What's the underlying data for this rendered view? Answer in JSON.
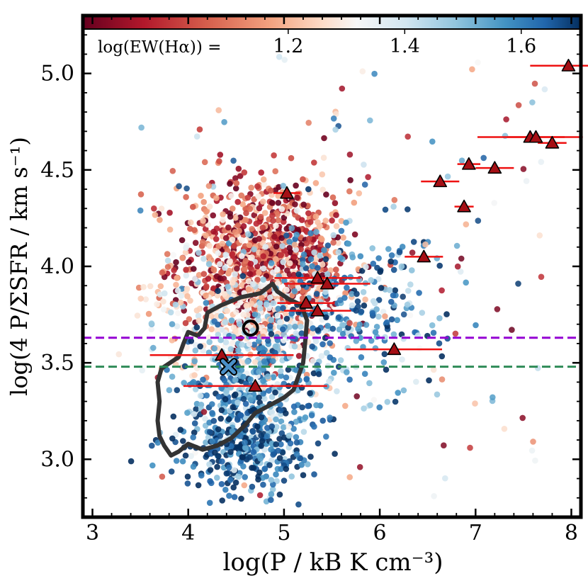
{
  "chart_data": {
    "type": "scatter",
    "xlabel": "log(P / kB K cm⁻³)",
    "ylabel": "log(4 P/ΣSFR / km s⁻¹)",
    "xlim": [
      2.9,
      8.1
    ],
    "ylim": [
      2.7,
      5.3
    ],
    "x_ticks": [
      3,
      4,
      5,
      6,
      7,
      8
    ],
    "x_tick_labels": [
      "3",
      "4",
      "5",
      "6",
      "7",
      "8"
    ],
    "y_ticks": [
      3.0,
      3.5,
      4.0,
      4.5,
      5.0
    ],
    "y_tick_labels": [
      "3.0",
      "3.5",
      "4.0",
      "4.5",
      "5.0"
    ],
    "colorbar": {
      "label": "log(EW(Hα)) =",
      "range": [
        0.85,
        1.7
      ],
      "ticks": [
        1.2,
        1.4,
        1.6
      ],
      "tick_labels": [
        "1.2",
        "1.4",
        "1.6"
      ],
      "colormap": "RdBu",
      "location": "top"
    },
    "hlines": [
      {
        "y": 3.63,
        "color": "#9400d3",
        "style": "dashed"
      },
      {
        "y": 3.48,
        "color": "#2e8b57",
        "style": "dashed"
      }
    ],
    "triangles": [
      {
        "x": 5.03,
        "y": 4.38,
        "xerr": 0.14
      },
      {
        "x": 6.46,
        "y": 4.05,
        "xerr": 0.2
      },
      {
        "x": 6.63,
        "y": 4.44,
        "xerr": 0.2
      },
      {
        "x": 6.88,
        "y": 4.31,
        "xerr": 0.1
      },
      {
        "x": 6.93,
        "y": 4.53,
        "xerr": 0.12
      },
      {
        "x": 7.2,
        "y": 4.51,
        "xerr": 0.2
      },
      {
        "x": 7.57,
        "y": 4.67,
        "xerr": 0.55
      },
      {
        "x": 7.63,
        "y": 4.67,
        "xerr": 0.3
      },
      {
        "x": 7.8,
        "y": 4.64,
        "xerr": 0.15
      },
      {
        "x": 7.97,
        "y": 5.04,
        "xerr": 0.4
      },
      {
        "x": 5.35,
        "y": 3.94,
        "xerr": 0.45
      },
      {
        "x": 5.45,
        "y": 3.91,
        "xerr": 0.45
      },
      {
        "x": 5.23,
        "y": 3.81,
        "xerr": 0.3
      },
      {
        "x": 5.35,
        "y": 3.77,
        "xerr": 0.35
      },
      {
        "x": 6.15,
        "y": 3.57,
        "xerr": 0.5
      },
      {
        "x": 4.35,
        "y": 3.54,
        "xerr": 0.75
      },
      {
        "x": 4.7,
        "y": 3.38,
        "xerr": 0.75
      }
    ],
    "open_circle": {
      "x": 4.65,
      "y": 3.68
    },
    "cross": {
      "x": 4.42,
      "y": 3.48
    },
    "contour": [
      [
        3.82,
        3.02
      ],
      [
        3.75,
        3.07
      ],
      [
        3.7,
        3.12
      ],
      [
        3.68,
        3.2
      ],
      [
        3.7,
        3.3
      ],
      [
        3.68,
        3.4
      ],
      [
        3.72,
        3.47
      ],
      [
        3.9,
        3.53
      ],
      [
        3.95,
        3.6
      ],
      [
        4.0,
        3.66
      ],
      [
        4.1,
        3.64
      ],
      [
        4.17,
        3.68
      ],
      [
        4.2,
        3.76
      ],
      [
        4.35,
        3.8
      ],
      [
        4.55,
        3.84
      ],
      [
        4.75,
        3.86
      ],
      [
        4.88,
        3.91
      ],
      [
        4.93,
        3.87
      ],
      [
        5.05,
        3.83
      ],
      [
        5.18,
        3.8
      ],
      [
        5.24,
        3.72
      ],
      [
        5.22,
        3.6
      ],
      [
        5.2,
        3.5
      ],
      [
        5.1,
        3.36
      ],
      [
        5.0,
        3.32
      ],
      [
        4.85,
        3.28
      ],
      [
        4.7,
        3.24
      ],
      [
        4.6,
        3.18
      ],
      [
        4.45,
        3.11
      ],
      [
        4.3,
        3.07
      ],
      [
        4.15,
        3.05
      ],
      [
        4.0,
        3.08
      ],
      [
        3.9,
        3.04
      ],
      [
        3.82,
        3.02
      ]
    ],
    "scatter_clusters": [
      {
        "cx": 4.8,
        "cy": 4.05,
        "sx": 0.45,
        "sy": 0.22,
        "ew": 1.0,
        "n": 900
      },
      {
        "cx": 4.6,
        "cy": 3.78,
        "sx": 0.5,
        "sy": 0.18,
        "ew": 1.25,
        "n": 350
      },
      {
        "cx": 4.7,
        "cy": 3.35,
        "sx": 0.4,
        "sy": 0.22,
        "ew": 1.5,
        "n": 450
      },
      {
        "cx": 4.6,
        "cy": 3.05,
        "sx": 0.35,
        "sy": 0.13,
        "ew": 1.65,
        "n": 250
      },
      {
        "cx": 5.7,
        "cy": 3.8,
        "sx": 0.5,
        "sy": 0.2,
        "ew": 1.55,
        "n": 250
      }
    ]
  }
}
